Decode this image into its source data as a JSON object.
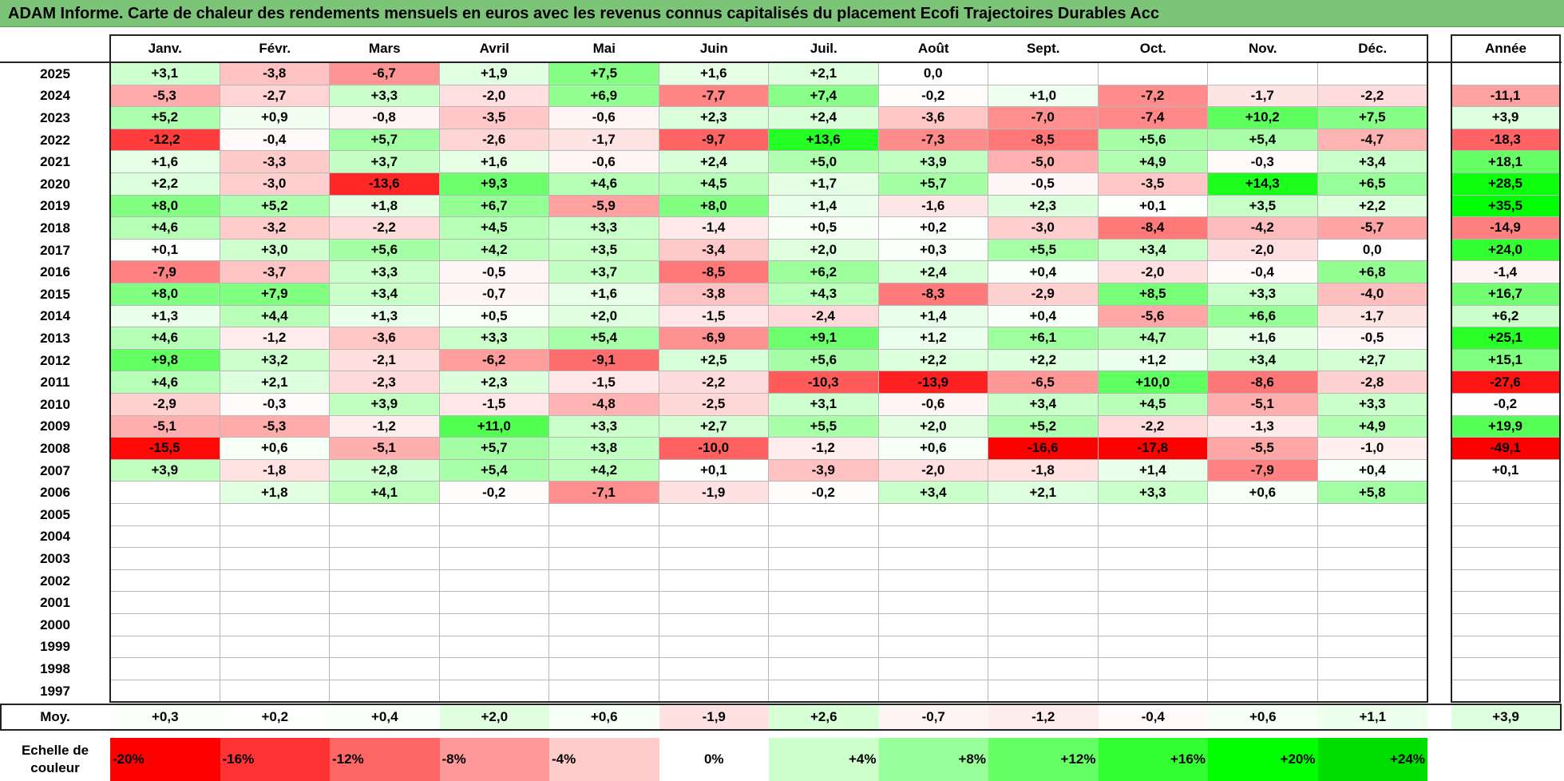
{
  "title": "ADAM Informe. Carte de chaleur des rendements mensuels en euros avec les revenus connus capitalisés du placement Ecofi Trajectoires Durables Acc",
  "chart_data": {
    "type": "heatmap",
    "title": "ADAM Informe. Carte de chaleur des rendements mensuels en euros avec les revenus connus capitalisés du placement Ecofi Trajectoires Durables Acc",
    "months": [
      "Janv.",
      "Févr.",
      "Mars",
      "Avril",
      "Mai",
      "Juin",
      "Juil.",
      "Août",
      "Sept.",
      "Oct.",
      "Nov.",
      "Déc."
    ],
    "annual_header": "Année",
    "rows": [
      {
        "year": "2025",
        "values": [
          "+3,1",
          "-3,8",
          "-6,7",
          "+1,9",
          "+7,5",
          "+1,6",
          "+2,1",
          "0,0",
          "",
          "",
          "",
          ""
        ],
        "annual": ""
      },
      {
        "year": "2024",
        "values": [
          "-5,3",
          "-2,7",
          "+3,3",
          "-2,0",
          "+6,9",
          "-7,7",
          "+7,4",
          "-0,2",
          "+1,0",
          "-7,2",
          "-1,7",
          "-2,2"
        ],
        "annual": "-11,1"
      },
      {
        "year": "2023",
        "values": [
          "+5,2",
          "+0,9",
          "-0,8",
          "-3,5",
          "-0,6",
          "+2,3",
          "+2,4",
          "-3,6",
          "-7,0",
          "-7,4",
          "+10,2",
          "+7,5"
        ],
        "annual": "+3,9"
      },
      {
        "year": "2022",
        "values": [
          "-12,2",
          "-0,4",
          "+5,7",
          "-2,6",
          "-1,7",
          "-9,7",
          "+13,6",
          "-7,3",
          "-8,5",
          "+5,6",
          "+5,4",
          "-4,7"
        ],
        "annual": "-18,3"
      },
      {
        "year": "2021",
        "values": [
          "+1,6",
          "-3,3",
          "+3,7",
          "+1,6",
          "-0,6",
          "+2,4",
          "+5,0",
          "+3,9",
          "-5,0",
          "+4,9",
          "-0,3",
          "+3,4"
        ],
        "annual": "+18,1"
      },
      {
        "year": "2020",
        "values": [
          "+2,2",
          "-3,0",
          "-13,6",
          "+9,3",
          "+4,6",
          "+4,5",
          "+1,7",
          "+5,7",
          "-0,5",
          "-3,5",
          "+14,3",
          "+6,5"
        ],
        "annual": "+28,5"
      },
      {
        "year": "2019",
        "values": [
          "+8,0",
          "+5,2",
          "+1,8",
          "+6,7",
          "-5,9",
          "+8,0",
          "+1,4",
          "-1,6",
          "+2,3",
          "+0,1",
          "+3,5",
          "+2,2"
        ],
        "annual": "+35,5"
      },
      {
        "year": "2018",
        "values": [
          "+4,6",
          "-3,2",
          "-2,2",
          "+4,5",
          "+3,3",
          "-1,4",
          "+0,5",
          "+0,2",
          "-3,0",
          "-8,4",
          "-4,2",
          "-5,7"
        ],
        "annual": "-14,9"
      },
      {
        "year": "2017",
        "values": [
          "+0,1",
          "+3,0",
          "+5,6",
          "+4,2",
          "+3,5",
          "-3,4",
          "+2,0",
          "+0,3",
          "+5,5",
          "+3,4",
          "-2,0",
          "0,0"
        ],
        "annual": "+24,0"
      },
      {
        "year": "2016",
        "values": [
          "-7,9",
          "-3,7",
          "+3,3",
          "-0,5",
          "+3,7",
          "-8,5",
          "+6,2",
          "+2,4",
          "+0,4",
          "-2,0",
          "-0,4",
          "+6,8"
        ],
        "annual": "-1,4"
      },
      {
        "year": "2015",
        "values": [
          "+8,0",
          "+7,9",
          "+3,4",
          "-0,7",
          "+1,6",
          "-3,8",
          "+4,3",
          "-8,3",
          "-2,9",
          "+8,5",
          "+3,3",
          "-4,0"
        ],
        "annual": "+16,7"
      },
      {
        "year": "2014",
        "values": [
          "+1,3",
          "+4,4",
          "+1,3",
          "+0,5",
          "+2,0",
          "-1,5",
          "-2,4",
          "+1,4",
          "+0,4",
          "-5,6",
          "+6,6",
          "-1,7"
        ],
        "annual": "+6,2"
      },
      {
        "year": "2013",
        "values": [
          "+4,6",
          "-1,2",
          "-3,6",
          "+3,3",
          "+5,4",
          "-6,9",
          "+9,1",
          "+1,2",
          "+6,1",
          "+4,7",
          "+1,6",
          "-0,5"
        ],
        "annual": "+25,1"
      },
      {
        "year": "2012",
        "values": [
          "+9,8",
          "+3,2",
          "-2,1",
          "-6,2",
          "-9,1",
          "+2,5",
          "+5,6",
          "+2,2",
          "+2,2",
          "+1,2",
          "+3,4",
          "+2,7"
        ],
        "annual": "+15,1"
      },
      {
        "year": "2011",
        "values": [
          "+4,6",
          "+2,1",
          "-2,3",
          "+2,3",
          "-1,5",
          "-2,2",
          "-10,3",
          "-13,9",
          "-6,5",
          "+10,0",
          "-8,6",
          "-2,8"
        ],
        "annual": "-27,6"
      },
      {
        "year": "2010",
        "values": [
          "-2,9",
          "-0,3",
          "+3,9",
          "-1,5",
          "-4,8",
          "-2,5",
          "+3,1",
          "-0,6",
          "+3,4",
          "+4,5",
          "-5,1",
          "+3,3"
        ],
        "annual": "-0,2"
      },
      {
        "year": "2009",
        "values": [
          "-5,1",
          "-5,3",
          "-1,2",
          "+11,0",
          "+3,3",
          "+2,7",
          "+5,5",
          "+2,0",
          "+5,2",
          "-2,2",
          "-1,3",
          "+4,9"
        ],
        "annual": "+19,9"
      },
      {
        "year": "2008",
        "values": [
          "-15,5",
          "+0,6",
          "-5,1",
          "+5,7",
          "+3,8",
          "-10,0",
          "-1,2",
          "+0,6",
          "-16,6",
          "-17,8",
          "-5,5",
          "-1,0"
        ],
        "annual": "-49,1"
      },
      {
        "year": "2007",
        "values": [
          "+3,9",
          "-1,8",
          "+2,8",
          "+5,4",
          "+4,2",
          "+0,1",
          "-3,9",
          "-2,0",
          "-1,8",
          "+1,4",
          "-7,9",
          "+0,4"
        ],
        "annual": "+0,1"
      },
      {
        "year": "2006",
        "values": [
          "",
          "+1,8",
          "+4,1",
          "-0,2",
          "-7,1",
          "-1,9",
          "-0,2",
          "+3,4",
          "+2,1",
          "+3,3",
          "+0,6",
          "+5,8"
        ],
        "annual": ""
      },
      {
        "year": "2005",
        "values": [
          "",
          "",
          "",
          "",
          "",
          "",
          "",
          "",
          "",
          "",
          "",
          ""
        ],
        "annual": ""
      },
      {
        "year": "2004",
        "values": [
          "",
          "",
          "",
          "",
          "",
          "",
          "",
          "",
          "",
          "",
          "",
          ""
        ],
        "annual": ""
      },
      {
        "year": "2003",
        "values": [
          "",
          "",
          "",
          "",
          "",
          "",
          "",
          "",
          "",
          "",
          "",
          ""
        ],
        "annual": ""
      },
      {
        "year": "2002",
        "values": [
          "",
          "",
          "",
          "",
          "",
          "",
          "",
          "",
          "",
          "",
          "",
          ""
        ],
        "annual": ""
      },
      {
        "year": "2001",
        "values": [
          "",
          "",
          "",
          "",
          "",
          "",
          "",
          "",
          "",
          "",
          "",
          ""
        ],
        "annual": ""
      },
      {
        "year": "2000",
        "values": [
          "",
          "",
          "",
          "",
          "",
          "",
          "",
          "",
          "",
          "",
          "",
          ""
        ],
        "annual": ""
      },
      {
        "year": "1999",
        "values": [
          "",
          "",
          "",
          "",
          "",
          "",
          "",
          "",
          "",
          "",
          "",
          ""
        ],
        "annual": ""
      },
      {
        "year": "1998",
        "values": [
          "",
          "",
          "",
          "",
          "",
          "",
          "",
          "",
          "",
          "",
          "",
          ""
        ],
        "annual": ""
      },
      {
        "year": "1997",
        "values": [
          "",
          "",
          "",
          "",
          "",
          "",
          "",
          "",
          "",
          "",
          "",
          ""
        ],
        "annual": ""
      }
    ],
    "average": {
      "label": "Moy.",
      "values": [
        "+0,3",
        "+0,2",
        "+0,4",
        "+2,0",
        "+0,6",
        "-1,9",
        "+2,6",
        "-0,7",
        "-1,2",
        "-0,4",
        "+0,6",
        "+1,1"
      ],
      "annual": "+3,9"
    },
    "color_scale": {
      "label": "Echelle de couleur",
      "stops": [
        {
          "label": "-20%",
          "value": -20,
          "color": "#ff0000"
        },
        {
          "label": "-16%",
          "value": -16,
          "color": "#ff3333"
        },
        {
          "label": "-12%",
          "value": -12,
          "color": "#ff6666"
        },
        {
          "label": "-8%",
          "value": -8,
          "color": "#ff9999"
        },
        {
          "label": "-4%",
          "value": -4,
          "color": "#ffcccc"
        },
        {
          "label": "0%",
          "value": 0,
          "color": "#ffffff"
        },
        {
          "label": "+4%",
          "value": 4,
          "color": "#ccffcc"
        },
        {
          "label": "+8%",
          "value": 8,
          "color": "#99ff99"
        },
        {
          "label": "+12%",
          "value": 12,
          "color": "#66ff66"
        },
        {
          "label": "+16%",
          "value": 16,
          "color": "#33ff33"
        },
        {
          "label": "+20%",
          "value": 20,
          "color": "#00ff00"
        },
        {
          "label": "+24%",
          "value": 24,
          "color": "#00dd00"
        }
      ]
    }
  }
}
